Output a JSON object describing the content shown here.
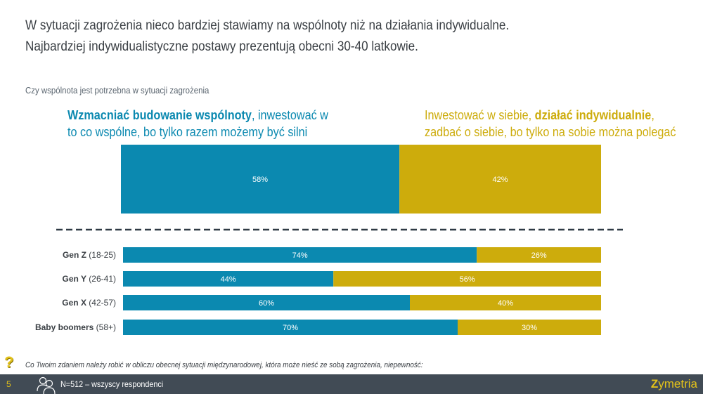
{
  "header": {
    "title_line1": "W sytuacji zagrożenia nieco bardziej stawiamy na wspólnoty niż na działania indywidualne.",
    "title_line2": "Najbardziej indywidualistyczne postawy prezentują obecni 30-40 latkowie.",
    "subtitle": "Czy wspólnota jest potrzebna w sytuacji zagrożenia"
  },
  "legend": {
    "left": {
      "bold": "Wzmacniać budowanie wspólnoty",
      "rest1": ", inwestować w",
      "line2": "to co wspólne, bo tylko razem możemy być silni"
    },
    "right": {
      "pre": "Inwestować w siebie, ",
      "bold": "działać indywidualnie",
      "post": ",",
      "line2": "zadbać o siebie, bo tylko na sobie można polegać"
    }
  },
  "chart_data": {
    "type": "bar",
    "orientation": "horizontal-stacked-100",
    "title": "Czy wspólnota jest potrzebna w sytuacji zagrożenia",
    "series_names": [
      "Wzmacniać budowanie wspólnoty",
      "Inwestować w siebie, działać indywidualnie"
    ],
    "colors": [
      "#0b89b0",
      "#cdac0c"
    ],
    "unit": "%",
    "total": {
      "values": [
        58,
        42
      ],
      "labels": [
        "58%",
        "42%"
      ]
    },
    "categories": [
      {
        "bold": "Gen Z",
        "range": " (18-25)"
      },
      {
        "bold": "Gen Y",
        "range": " (26-41)"
      },
      {
        "bold": "Gen X",
        "range": " (42-57)"
      },
      {
        "bold": "Baby boomers",
        "range": " (58+)"
      }
    ],
    "series": [
      {
        "name": "Wzmacniać budowanie wspólnoty",
        "values": [
          74,
          44,
          60,
          70
        ],
        "labels": [
          "74%",
          "44%",
          "60%",
          "70%"
        ]
      },
      {
        "name": "Inwestować w siebie, działać indywidualnie",
        "values": [
          26,
          56,
          40,
          30
        ],
        "labels": [
          "26%",
          "56%",
          "40%",
          "30%"
        ]
      }
    ],
    "xlim": [
      0,
      100
    ],
    "grid": false
  },
  "footer": {
    "question": "Co Twoim zdaniem należy robić w obliczu obecnej sytuacji międzynarodowej, która może nieść ze sobą zagrożenia, niepewność:",
    "page_number": "5",
    "sample": "N=512 – wszyscy respondenci",
    "logo_z": "Z",
    "logo_rest": "ymetria",
    "question_icon": "?"
  }
}
